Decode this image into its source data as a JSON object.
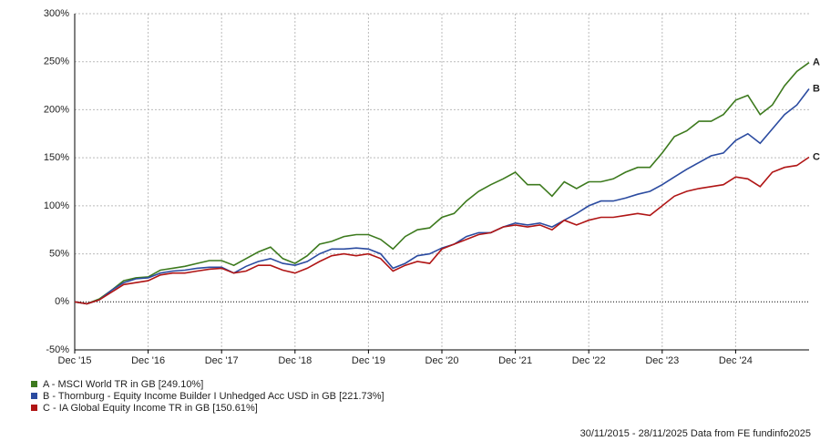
{
  "chart_data": {
    "type": "line",
    "categories": [
      "Dec '15",
      null,
      null,
      null,
      null,
      null,
      "Dec '16",
      null,
      null,
      null,
      null,
      null,
      "Dec '17",
      null,
      null,
      null,
      null,
      null,
      "Dec '18",
      null,
      null,
      null,
      null,
      null,
      "Dec '19",
      null,
      null,
      null,
      null,
      null,
      "Dec '20",
      null,
      null,
      null,
      null,
      null,
      "Dec '21",
      null,
      null,
      null,
      null,
      null,
      "Dec '22",
      null,
      null,
      null,
      null,
      null,
      "Dec '23",
      null,
      null,
      null,
      null,
      null,
      "Dec '24",
      null,
      null,
      null,
      null,
      null,
      null
    ],
    "ylim": [
      -50,
      300
    ],
    "yticks": [
      {
        "value": -50,
        "label": "-50%"
      },
      {
        "value": 0,
        "label": "0%"
      },
      {
        "value": 50,
        "label": "50%"
      },
      {
        "value": 100,
        "label": "100%"
      },
      {
        "value": 150,
        "label": "150%"
      },
      {
        "value": 200,
        "label": "200%"
      },
      {
        "value": 250,
        "label": "250%"
      },
      {
        "value": 300,
        "label": "300%"
      }
    ],
    "grid": true,
    "series": [
      {
        "name": "A - MSCI World TR in GB [249.10%]",
        "end_label": "A",
        "color": "#3d7a1e",
        "values": [
          0,
          -2,
          3,
          12,
          22,
          25,
          26,
          33,
          35,
          37,
          40,
          43,
          43,
          38,
          45,
          52,
          57,
          45,
          40,
          48,
          60,
          63,
          68,
          70,
          70,
          65,
          55,
          68,
          75,
          77,
          88,
          92,
          105,
          115,
          122,
          128,
          135,
          122,
          122,
          110,
          125,
          118,
          125,
          125,
          128,
          135,
          140,
          140,
          155,
          172,
          178,
          188,
          188,
          195,
          210,
          215,
          195,
          205,
          225,
          240,
          249.1
        ]
      },
      {
        "name": "B - Thornburg - Equity Income Builder I Unhedged Acc USD in GB [221.73%]",
        "end_label": "B",
        "color": "#2b4ba0",
        "values": [
          0,
          -2,
          2,
          12,
          20,
          24,
          25,
          30,
          32,
          33,
          35,
          36,
          36,
          30,
          37,
          42,
          45,
          40,
          38,
          42,
          50,
          55,
          55,
          56,
          55,
          50,
          35,
          40,
          48,
          50,
          56,
          60,
          68,
          72,
          72,
          78,
          82,
          80,
          82,
          78,
          85,
          92,
          100,
          105,
          105,
          108,
          112,
          115,
          122,
          130,
          138,
          145,
          152,
          155,
          168,
          175,
          165,
          180,
          195,
          205,
          221.73
        ]
      },
      {
        "name": "C - IA Global Equity Income TR in GB [150.61%]",
        "end_label": "C",
        "color": "#b01515",
        "values": [
          0,
          -2,
          2,
          10,
          18,
          20,
          22,
          28,
          30,
          30,
          32,
          34,
          35,
          30,
          32,
          38,
          38,
          33,
          30,
          35,
          42,
          48,
          50,
          48,
          50,
          45,
          32,
          38,
          42,
          40,
          55,
          60,
          65,
          70,
          72,
          78,
          80,
          78,
          80,
          75,
          85,
          80,
          85,
          88,
          88,
          90,
          92,
          90,
          100,
          110,
          115,
          118,
          120,
          122,
          130,
          128,
          120,
          135,
          140,
          142,
          150.61
        ]
      }
    ],
    "footer": "30/11/2015 - 28/11/2025 Data from FE fundinfo2025"
  }
}
